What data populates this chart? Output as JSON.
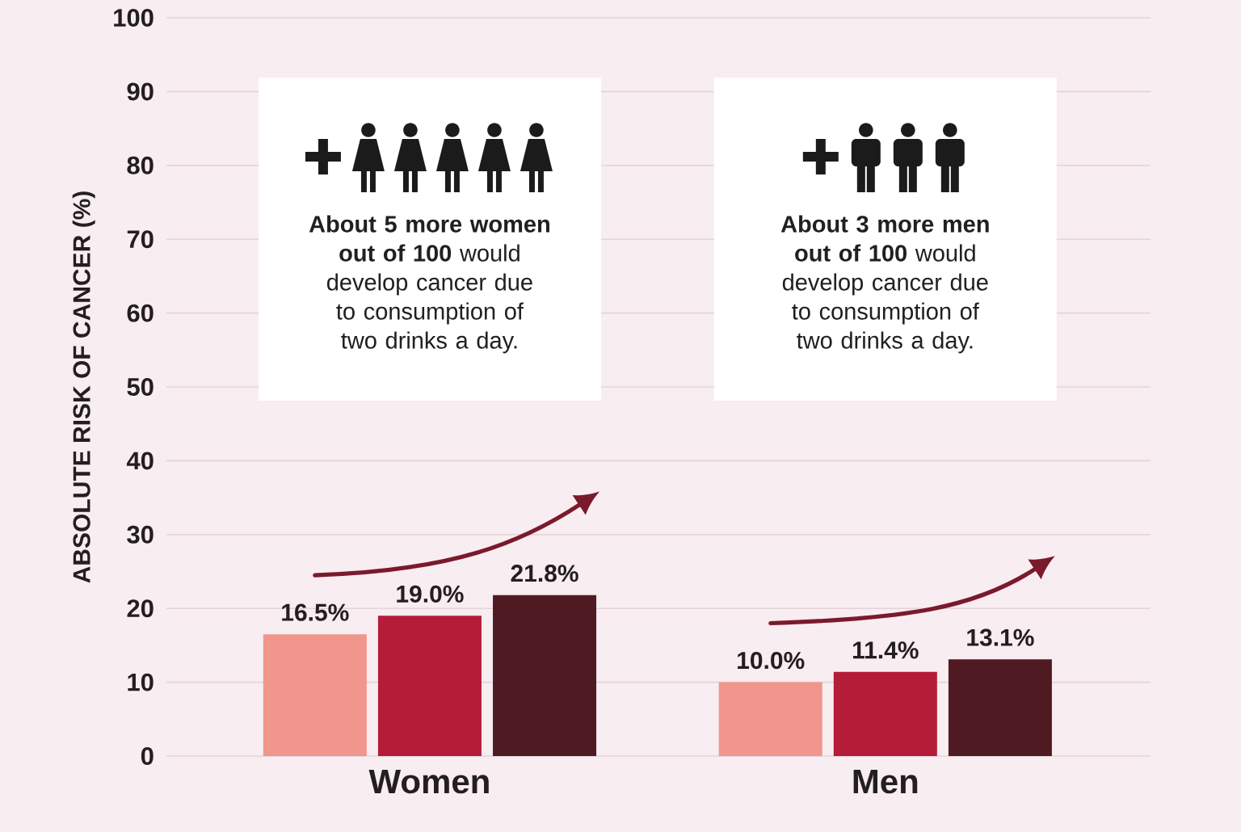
{
  "chart_data": {
    "type": "bar",
    "categories": [
      "Women",
      "Men"
    ],
    "series": [
      {
        "color": "#f0968c",
        "values": [
          16.5,
          10.0
        ],
        "value_labels": [
          "16.5%",
          "10.0%"
        ]
      },
      {
        "color": "#b51c38",
        "values": [
          19.0,
          11.4
        ],
        "value_labels": [
          "19.0%",
          "11.4%"
        ]
      },
      {
        "color": "#501a23",
        "values": [
          21.8,
          13.1
        ],
        "value_labels": [
          "21.8%",
          "13.1%"
        ]
      }
    ],
    "ylabel": "ABSOLUTE RISK OF CANCER (%)",
    "ylim": [
      0,
      100
    ],
    "yticks": [
      0,
      10,
      20,
      30,
      40,
      50,
      60,
      70,
      80,
      90,
      100
    ],
    "grid": "y",
    "annotations": [
      "**About 5 more women out of 100** would develop cancer due to consumption of two drinks a day.",
      "**About 3 more men out of 100** would develop cancer due to consumption of two drinks a day."
    ]
  }
}
